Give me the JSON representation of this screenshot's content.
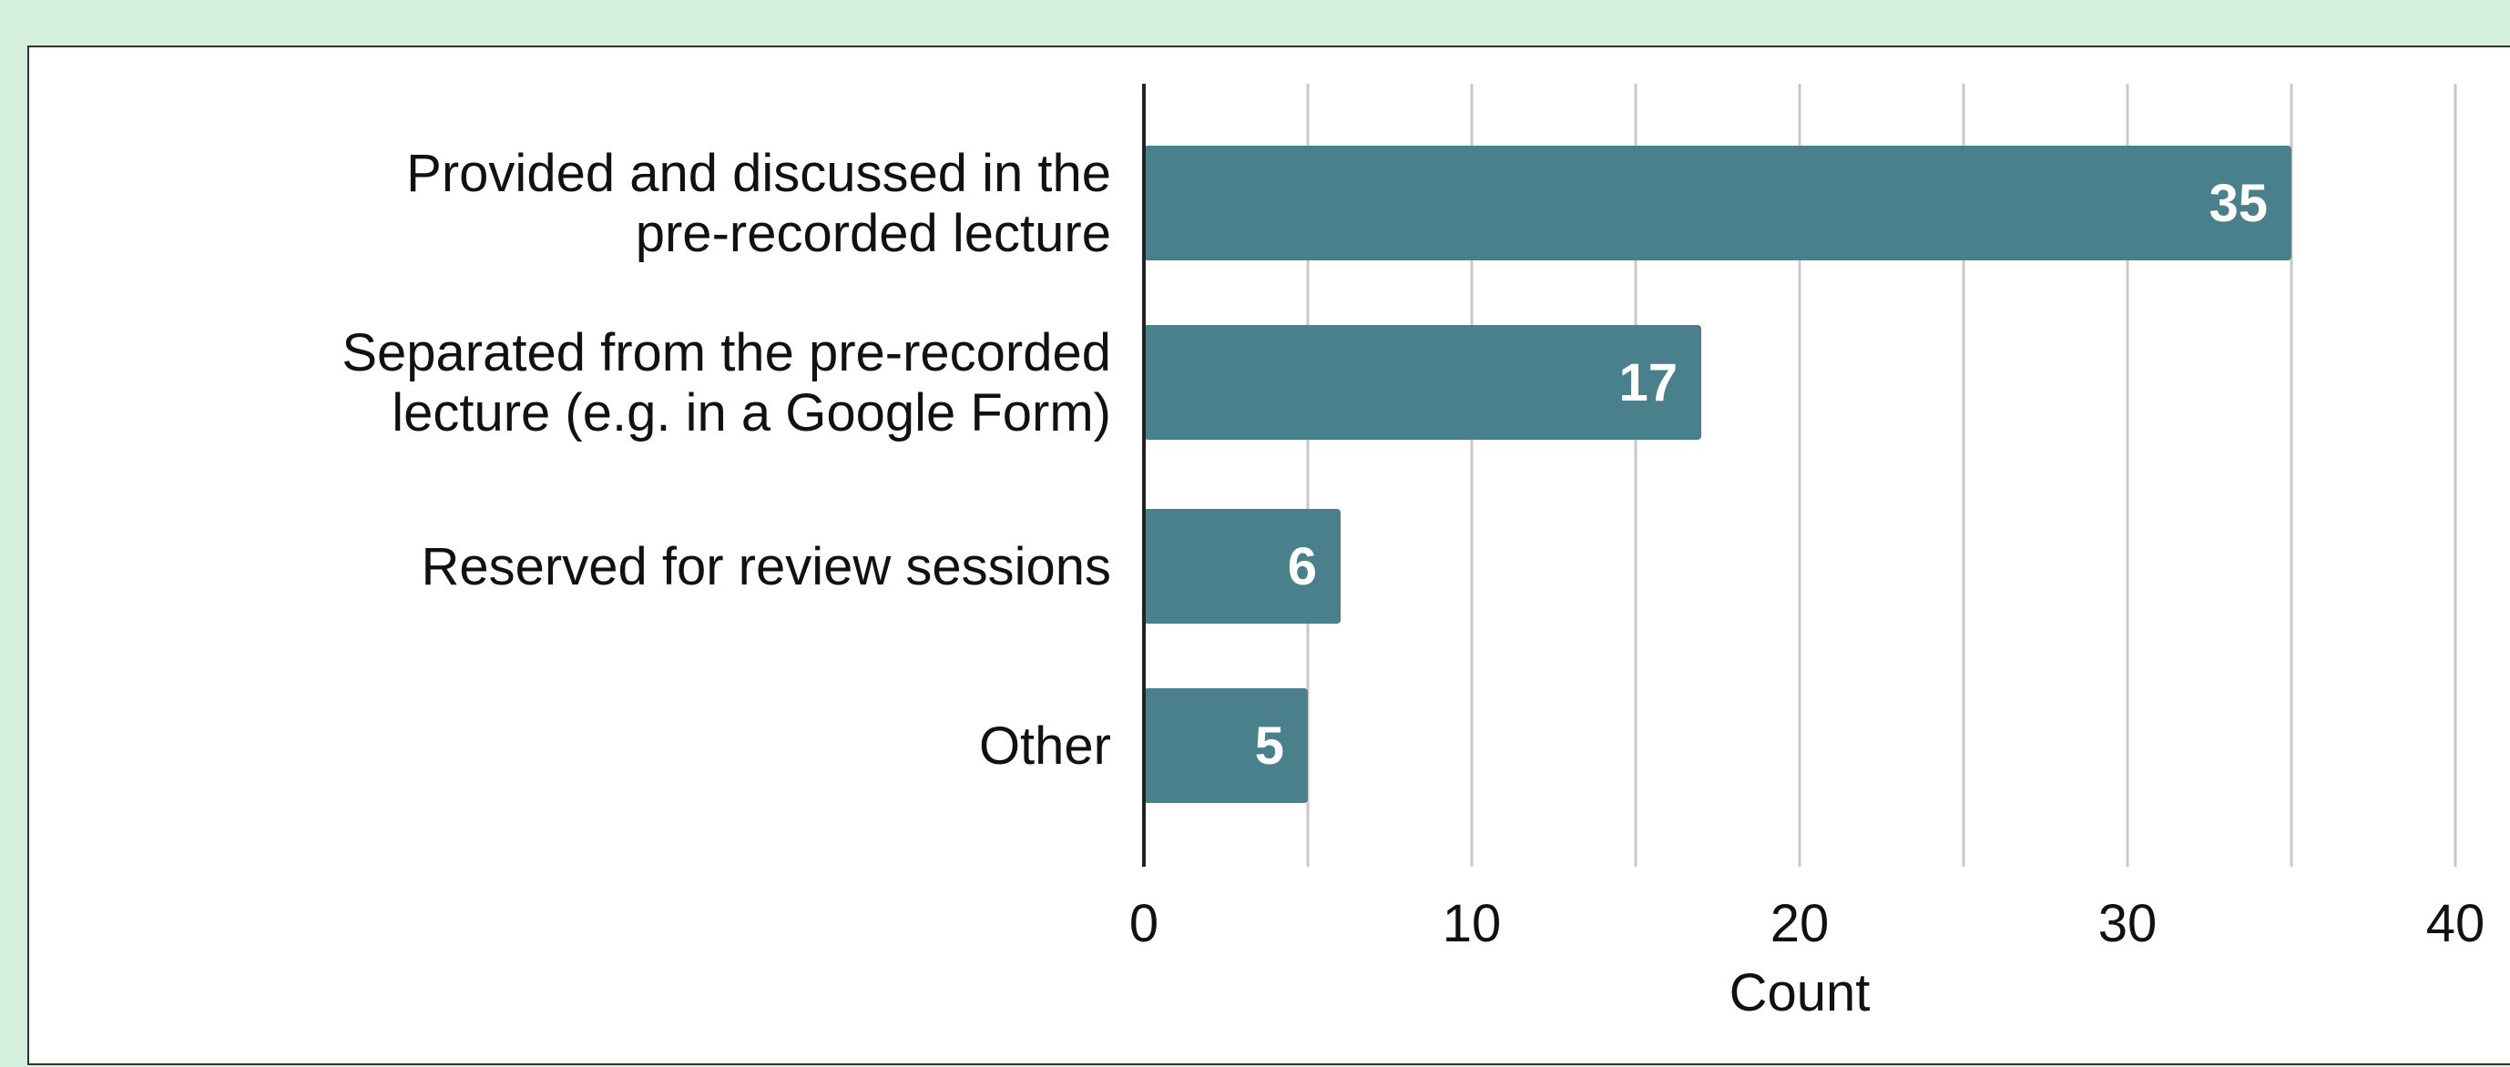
{
  "colors": {
    "background": "#d4efdb",
    "panel": "#ffffff",
    "bar": "#4a7f8c",
    "gridline": "#c8c8c8",
    "axis": "#222222",
    "value_label": "#ffffff"
  },
  "chart_data": {
    "type": "bar",
    "orientation": "horizontal",
    "categories": [
      "Provided and discussed in the pre-recorded lecture",
      "Separated from the pre-recorded lecture (e.g. in a Google Form)",
      "Reserved for review sessions",
      "Other"
    ],
    "category_label_lines": [
      [
        "Provided and discussed in the",
        "pre-recorded lecture"
      ],
      [
        "Separated from the pre-recorded",
        "lecture (e.g. in a Google Form)"
      ],
      [
        "Reserved for review sessions"
      ],
      [
        "Other"
      ]
    ],
    "values": [
      35,
      17,
      6,
      5
    ],
    "data_labels": [
      "35",
      "17",
      "6",
      "5"
    ],
    "xlabel": "Count",
    "ylabel": "",
    "xlim": [
      0,
      40
    ],
    "xticks": [
      0,
      10,
      20,
      30,
      40
    ],
    "xtick_labels": [
      "0",
      "10",
      "20",
      "30",
      "40"
    ],
    "minor_gridlines": [
      5,
      15,
      25,
      35
    ],
    "grid": true,
    "legend": "none"
  }
}
